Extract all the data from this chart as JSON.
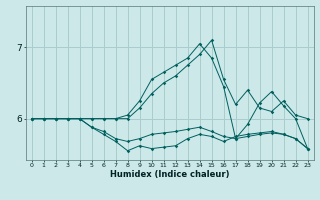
{
  "xlabel": "Humidex (Indice chaleur)",
  "background_color": "#cce8e8",
  "grid_color": "#aacccc",
  "line_color": "#005f5f",
  "xlim": [
    -0.5,
    23.5
  ],
  "ylim": [
    5.42,
    7.58
  ],
  "yticks": [
    6,
    7
  ],
  "xticks": [
    0,
    1,
    2,
    3,
    4,
    5,
    6,
    7,
    8,
    9,
    10,
    11,
    12,
    13,
    14,
    15,
    16,
    17,
    18,
    19,
    20,
    21,
    22,
    23
  ],
  "lines": [
    [
      6.0,
      6.0,
      6.0,
      6.0,
      6.0,
      6.0,
      6.0,
      6.0,
      6.0,
      6.15,
      6.35,
      6.5,
      6.6,
      6.75,
      6.9,
      7.1,
      6.55,
      6.2,
      6.4,
      6.15,
      6.1,
      6.25,
      6.05,
      6.0
    ],
    [
      6.0,
      6.0,
      6.0,
      6.0,
      6.0,
      5.88,
      5.82,
      5.72,
      5.68,
      5.72,
      5.78,
      5.8,
      5.82,
      5.85,
      5.88,
      5.82,
      5.75,
      5.72,
      5.75,
      5.78,
      5.8,
      5.78,
      5.72,
      5.58
    ],
    [
      6.0,
      6.0,
      6.0,
      6.0,
      6.0,
      5.88,
      5.78,
      5.68,
      5.55,
      5.62,
      5.58,
      5.6,
      5.62,
      5.72,
      5.78,
      5.75,
      5.68,
      5.75,
      5.78,
      5.8,
      5.82,
      5.78,
      5.72,
      5.58
    ],
    [
      6.0,
      6.0,
      6.0,
      6.0,
      6.0,
      6.0,
      6.0,
      6.0,
      6.05,
      6.25,
      6.55,
      6.65,
      6.75,
      6.85,
      7.05,
      6.85,
      6.45,
      5.72,
      5.92,
      6.22,
      6.38,
      6.18,
      6.0,
      5.58
    ]
  ]
}
